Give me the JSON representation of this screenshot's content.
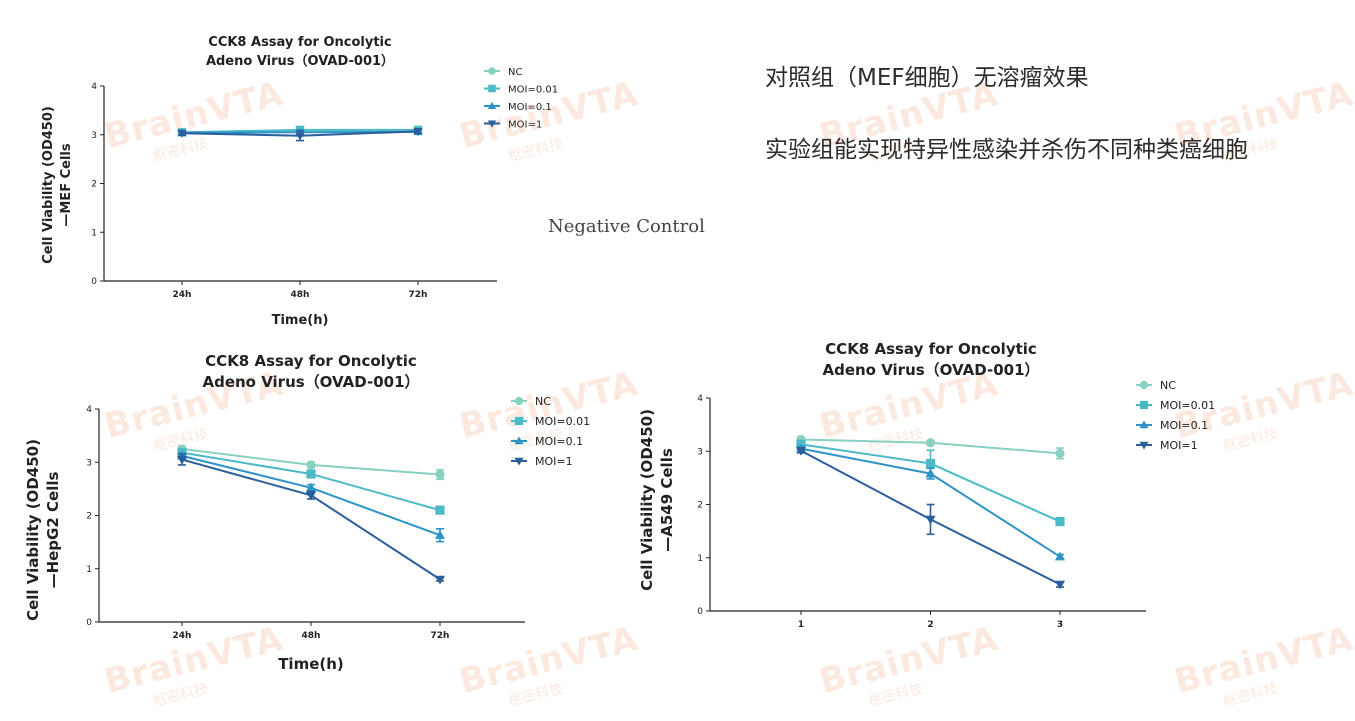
{
  "notes": {
    "line1": "对照组（MEF细胞）无溶瘤效果",
    "line2": "实验组能实现特异性感染并杀伤不同种类癌细胞",
    "caption": "Negative Control"
  },
  "watermark": {
    "logo": "BrainVTA",
    "sub": "枢密科技"
  },
  "colors": {
    "NC": "#88d0c0",
    "MOI=0.01": "#4bbac6",
    "MOI=0.1": "#2e93c7",
    "MOI=1": "#2b5e9c"
  },
  "chart_data": [
    {
      "type": "line",
      "title_lines": [
        "CCK8 Assay for Oncolytic",
        "Adeno Virus（OVAD-001）"
      ],
      "xlabel": "Time(h)",
      "ylabel_lines": [
        "Cell Viability (OD450)",
        "—MEF Cells"
      ],
      "categories": [
        "24h",
        "48h",
        "72h"
      ],
      "ylim": [
        0,
        4
      ],
      "yticks": [
        0,
        1,
        2,
        3,
        4
      ],
      "legend_position": "top-right",
      "series": [
        {
          "name": "NC",
          "marker": "circle",
          "values": [
            3.05,
            3.08,
            3.07
          ],
          "errors": [
            0.04,
            0.05,
            0.04
          ]
        },
        {
          "name": "MOI=0.01",
          "marker": "square",
          "values": [
            3.05,
            3.1,
            3.1
          ],
          "errors": [
            0.04,
            0.05,
            0.04
          ]
        },
        {
          "name": "MOI=0.1",
          "marker": "triangle-up",
          "values": [
            3.04,
            3.05,
            3.06
          ],
          "errors": [
            0.04,
            0.05,
            0.04
          ]
        },
        {
          "name": "MOI=1",
          "marker": "triangle-down",
          "values": [
            3.03,
            2.98,
            3.07
          ],
          "errors": [
            0.04,
            0.1,
            0.04
          ]
        }
      ]
    },
    {
      "type": "line",
      "title_lines": [
        "CCK8 Assay for Oncolytic",
        "Adeno Virus（OVAD-001）"
      ],
      "xlabel": "Time(h)",
      "ylabel_lines": [
        "Cell Viability (OD450)",
        "—HepG2 Cells"
      ],
      "categories": [
        "24h",
        "48h",
        "72h"
      ],
      "ylim": [
        0,
        4
      ],
      "yticks": [
        0,
        1,
        2,
        3,
        4
      ],
      "legend_position": "top-right",
      "series": [
        {
          "name": "NC",
          "marker": "circle",
          "values": [
            3.25,
            2.95,
            2.77
          ],
          "errors": [
            0.05,
            0.05,
            0.09
          ]
        },
        {
          "name": "MOI=0.01",
          "marker": "square",
          "values": [
            3.18,
            2.78,
            2.1
          ],
          "errors": [
            0.05,
            0.05,
            0.04
          ]
        },
        {
          "name": "MOI=0.1",
          "marker": "triangle-up",
          "values": [
            3.12,
            2.52,
            1.63
          ],
          "errors": [
            0.05,
            0.06,
            0.12
          ]
        },
        {
          "name": "MOI=1",
          "marker": "triangle-down",
          "values": [
            3.05,
            2.38,
            0.8
          ],
          "errors": [
            0.1,
            0.07,
            0.03
          ]
        }
      ]
    },
    {
      "type": "line",
      "title_lines": [
        "CCK8 Assay for Oncolytic",
        "Adeno Virus（OVAD-001）"
      ],
      "xlabel": "",
      "ylabel_lines": [
        "Cell Viability (OD450)",
        "—A549 Cells"
      ],
      "categories": [
        "1",
        "2",
        "3"
      ],
      "ylim": [
        0,
        4
      ],
      "yticks": [
        0,
        1,
        2,
        3,
        4
      ],
      "legend_position": "top-right",
      "series": [
        {
          "name": "NC",
          "marker": "circle",
          "values": [
            3.22,
            3.16,
            2.96
          ],
          "errors": [
            0.04,
            0.04,
            0.1
          ]
        },
        {
          "name": "MOI=0.01",
          "marker": "square",
          "values": [
            3.13,
            2.77,
            1.68
          ],
          "errors": [
            0.04,
            0.25,
            0.04
          ]
        },
        {
          "name": "MOI=0.1",
          "marker": "triangle-up",
          "values": [
            3.05,
            2.58,
            1.02
          ],
          "errors": [
            0.04,
            0.1,
            0.04
          ]
        },
        {
          "name": "MOI=1",
          "marker": "triangle-down",
          "values": [
            3.01,
            1.72,
            0.5
          ],
          "errors": [
            0.04,
            0.28,
            0.05
          ]
        }
      ]
    }
  ]
}
